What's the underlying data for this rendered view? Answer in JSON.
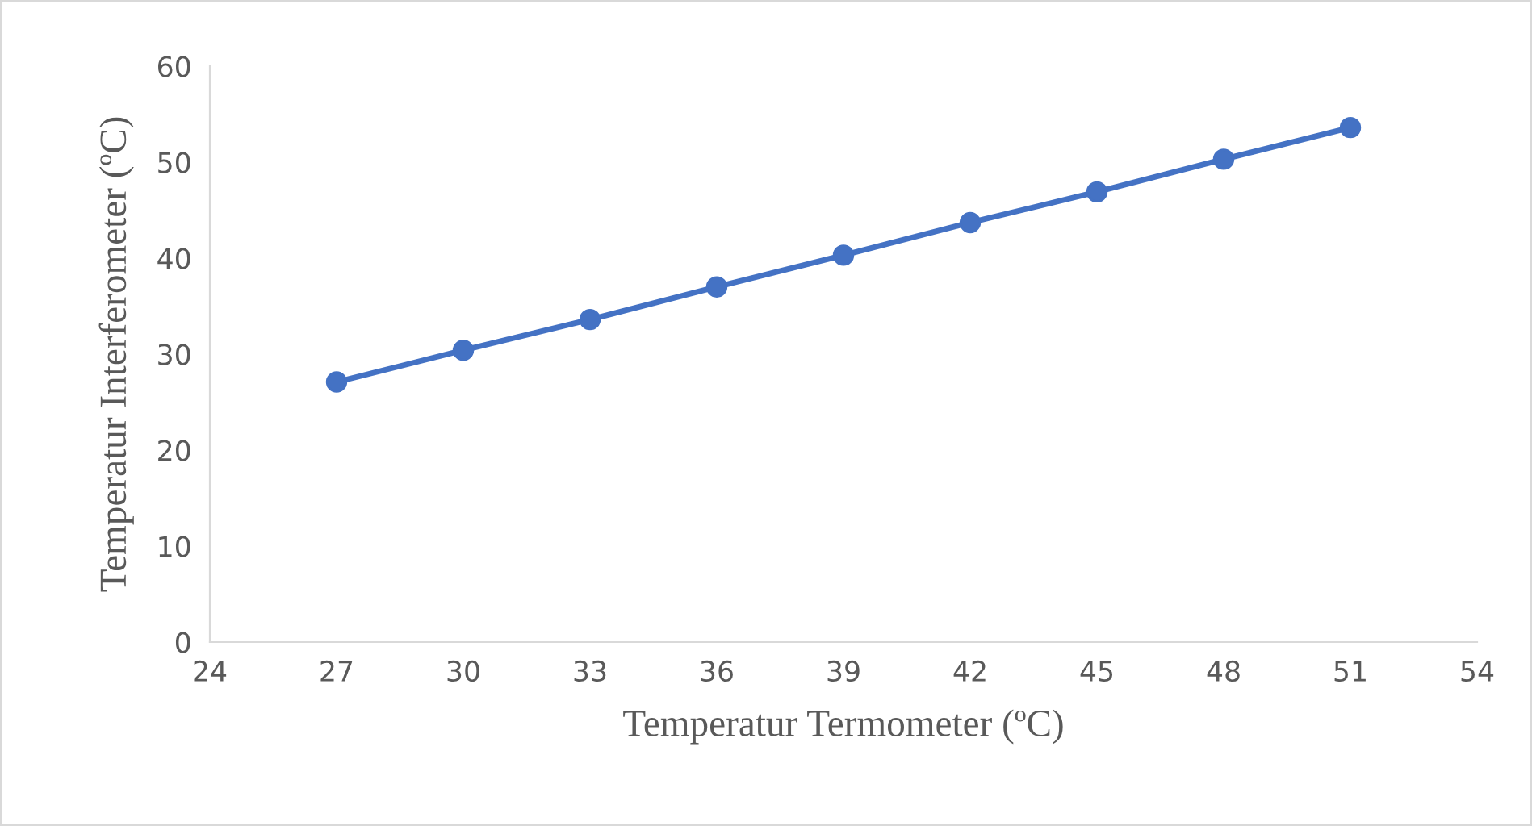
{
  "chart_data": {
    "type": "line",
    "xlabel": "Temperatur Termometer (ºC)",
    "ylabel": "Temperatur Interferometer (ºC)",
    "x": [
      27,
      30,
      33,
      36,
      39,
      42,
      45,
      48,
      51
    ],
    "series": [
      {
        "color": "#4472c4",
        "values": [
          27.1,
          30.4,
          33.6,
          37.0,
          40.3,
          43.7,
          46.9,
          50.3,
          53.6
        ]
      }
    ],
    "xlim": [
      24,
      54
    ],
    "xticks": [
      24,
      27,
      30,
      33,
      36,
      39,
      42,
      45,
      48,
      51,
      54
    ],
    "ylim": [
      0,
      60
    ],
    "yticks": [
      0,
      10,
      20,
      30,
      40,
      50,
      60
    ],
    "grid": false,
    "marker": "circle",
    "line_style": "solid"
  }
}
